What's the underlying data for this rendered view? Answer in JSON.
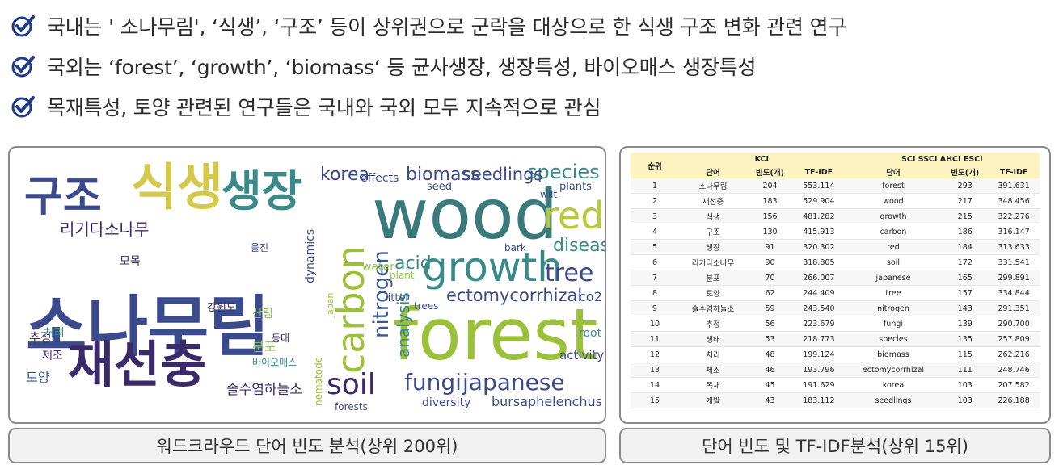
{
  "bullets": [
    "국내는 ' 소나무림', ‘식생’, ‘구조’ 등이 상위권으로 군락을 대상으로 한 식생 구조 변화 관련 연구",
    "국외는 ‘forest’, ‘growth’, ‘biomass‘ 등 균사생장, 생장특성, 바이오매스 생장특성",
    "목재특성, 토양 관련된 연구들은 국내와 국외 모두 지속적으로 관심"
  ],
  "icons": {
    "bullet": "checkmark-circle-icon"
  },
  "colors": {
    "check": "#1f3b8c",
    "header": "#fdf3c0",
    "caption_bg": "#f1f1f1"
  },
  "wordcloud_kr": {
    "words": [
      {
        "t": "소나무림",
        "c": "#3b4a8c"
      },
      {
        "t": "재선충",
        "c": "#3b2a6a"
      },
      {
        "t": "식생",
        "c": "#d4c94a"
      },
      {
        "t": "구조",
        "c": "#3b4a8c"
      },
      {
        "t": "생장",
        "c": "#3a8a8a"
      },
      {
        "t": "리기다소나무",
        "c": "#3b2a6a"
      },
      {
        "t": "솔수염하늘소",
        "c": "#3b2a6a"
      },
      {
        "t": "토양",
        "c": "#3a5a8c"
      },
      {
        "t": "추정",
        "c": "#3b2a6a"
      },
      {
        "t": "분포",
        "c": "#8cc34a"
      },
      {
        "t": "강원도",
        "c": "#3b2a6a"
      },
      {
        "t": "바이오매스",
        "c": "#3a8a8a"
      },
      {
        "t": "모목",
        "c": "#3b2a6a"
      },
      {
        "t": "제조",
        "c": "#3b2a6a"
      },
      {
        "t": "산림",
        "c": "#8cc34a"
      },
      {
        "t": "처리",
        "c": "#3a8a8a"
      },
      {
        "t": "동태",
        "c": "#3b2a6a"
      },
      {
        "t": "울진",
        "c": "#3b4a8c"
      }
    ]
  },
  "wordcloud_en": {
    "words": [
      {
        "t": "wood",
        "c": "#3a7a7a"
      },
      {
        "t": "forest",
        "c": "#9bc13a"
      },
      {
        "t": "growth",
        "c": "#3a8a8a"
      },
      {
        "t": "carbon",
        "c": "#9bc13a"
      },
      {
        "t": "red",
        "c": "#b7c93a"
      },
      {
        "t": "soil",
        "c": "#3b2a6a"
      },
      {
        "t": "nitrogen",
        "c": "#3a5a8c"
      },
      {
        "t": "fungi",
        "c": "#3b4a8c"
      },
      {
        "t": "japanese",
        "c": "#3b4a8c"
      },
      {
        "t": "species",
        "c": "#3a8a8a"
      },
      {
        "t": "biomass",
        "c": "#3b4a8c"
      },
      {
        "t": "seedlings",
        "c": "#3b4a8c"
      },
      {
        "t": "tree",
        "c": "#3b4a8c"
      },
      {
        "t": "ectomycorrhizal",
        "c": "#3b4a8c"
      },
      {
        "t": "korea",
        "c": "#3b4a8c"
      },
      {
        "t": "disease",
        "c": "#3a8a8a"
      },
      {
        "t": "acid",
        "c": "#3a8a8a"
      },
      {
        "t": "analysis",
        "c": "#3a8a8a"
      },
      {
        "t": "bursaphelenchus",
        "c": "#3b4a8c"
      },
      {
        "t": "diversity",
        "c": "#3b4a8c"
      },
      {
        "t": "activity",
        "c": "#3b4a8c"
      },
      {
        "t": "dynamics",
        "c": "#3b4a8c"
      },
      {
        "t": "co2",
        "c": "#3b4a8c"
      },
      {
        "t": "root",
        "c": "#3a8a8a"
      },
      {
        "t": "effects",
        "c": "#3b4a8c"
      },
      {
        "t": "plants",
        "c": "#3b4a8c"
      },
      {
        "t": "water",
        "c": "#8cc34a"
      },
      {
        "t": "seed",
        "c": "#3b4a8c"
      },
      {
        "t": "trees",
        "c": "#3b4a8c"
      },
      {
        "t": "litter",
        "c": "#3b4a8c"
      },
      {
        "t": "forests",
        "c": "#3b4a8c"
      },
      {
        "t": "nematode",
        "c": "#9bc13a"
      },
      {
        "t": "japan",
        "c": "#9bc13a"
      },
      {
        "t": "bark",
        "c": "#3b4a8c"
      },
      {
        "t": "wilt",
        "c": "#3b4a8c"
      },
      {
        "t": "plant",
        "c": "#8cc34a"
      }
    ]
  },
  "table": {
    "rank_header": "순위",
    "kci_label": "KCI",
    "sci_label": "SCI SSCI  AHCI ESCI",
    "col_word": "단어",
    "col_freq": "빈도(개)",
    "col_tfidf": "TF-IDF",
    "rows": [
      {
        "rank": "1",
        "kw": "소나무림",
        "kf": "204",
        "kt": "553.114",
        "sw": "forest",
        "sf": "293",
        "st": "391.631"
      },
      {
        "rank": "2",
        "kw": "재선충",
        "kf": "183",
        "kt": "529.904",
        "sw": "wood",
        "sf": "217",
        "st": "348.456"
      },
      {
        "rank": "3",
        "kw": "식생",
        "kf": "156",
        "kt": "481.282",
        "sw": "growth",
        "sf": "215",
        "st": "322.276"
      },
      {
        "rank": "4",
        "kw": "구조",
        "kf": "130",
        "kt": "415.913",
        "sw": "carbon",
        "sf": "186",
        "st": "316.147"
      },
      {
        "rank": "5",
        "kw": "생장",
        "kf": "91",
        "kt": "320.302",
        "sw": "red",
        "sf": "184",
        "st": "313.633"
      },
      {
        "rank": "6",
        "kw": "리기다소나무",
        "kf": "90",
        "kt": "318.805",
        "sw": "soil",
        "sf": "172",
        "st": "331.541"
      },
      {
        "rank": "7",
        "kw": "분포",
        "kf": "70",
        "kt": "266.007",
        "sw": "japanese",
        "sf": "165",
        "st": "299.891"
      },
      {
        "rank": "8",
        "kw": "토양",
        "kf": "62",
        "kt": "244.409",
        "sw": "tree",
        "sf": "157",
        "st": "334.844"
      },
      {
        "rank": "9",
        "kw": "솔수염하늘소",
        "kf": "59",
        "kt": "243.540",
        "sw": "nitrogen",
        "sf": "143",
        "st": "291.351"
      },
      {
        "rank": "10",
        "kw": "추정",
        "kf": "56",
        "kt": "223.679",
        "sw": "fungi",
        "sf": "139",
        "st": "290.700"
      },
      {
        "rank": "11",
        "kw": "생태",
        "kf": "53",
        "kt": "218.773",
        "sw": "species",
        "sf": "135",
        "st": "257.809"
      },
      {
        "rank": "12",
        "kw": "처리",
        "kf": "48",
        "kt": "199.124",
        "sw": "biomass",
        "sf": "115",
        "st": "262.216"
      },
      {
        "rank": "13",
        "kw": "제조",
        "kf": "46",
        "kt": "193.796",
        "sw": "ectomycorrhizal",
        "sf": "111",
        "st": "248.746"
      },
      {
        "rank": "14",
        "kw": "목재",
        "kf": "45",
        "kt": "191.629",
        "sw": "korea",
        "sf": "103",
        "st": "207.582"
      },
      {
        "rank": "15",
        "kw": "개발",
        "kf": "43",
        "kt": "183.112",
        "sw": "seedlings",
        "sf": "103",
        "st": "226.188"
      }
    ]
  },
  "captions": {
    "left": "워드크라우드 단어 빈도 분석(상위 200위)",
    "right": "단어 빈도 및 TF-IDF분석(상위 15위)"
  }
}
